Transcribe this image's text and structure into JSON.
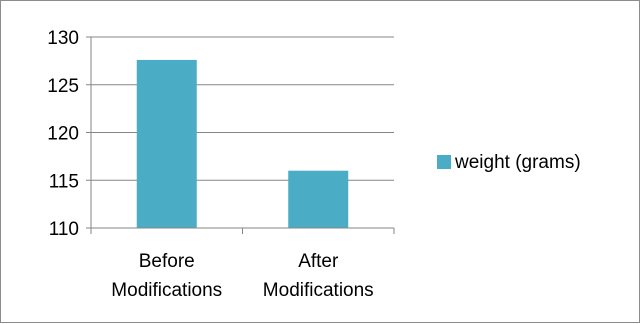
{
  "chart_data": {
    "type": "bar",
    "categories": [
      [
        "Before",
        "Modifications"
      ],
      [
        "After",
        "Modifications"
      ]
    ],
    "series": [
      {
        "name": "weight (grams)",
        "values": [
          127.6,
          116.0
        ],
        "color": "#4BACC6"
      }
    ],
    "ylim": [
      110,
      130
    ],
    "yticks": [
      110,
      115,
      120,
      125,
      130
    ],
    "grid": true,
    "legend_position": "right"
  }
}
